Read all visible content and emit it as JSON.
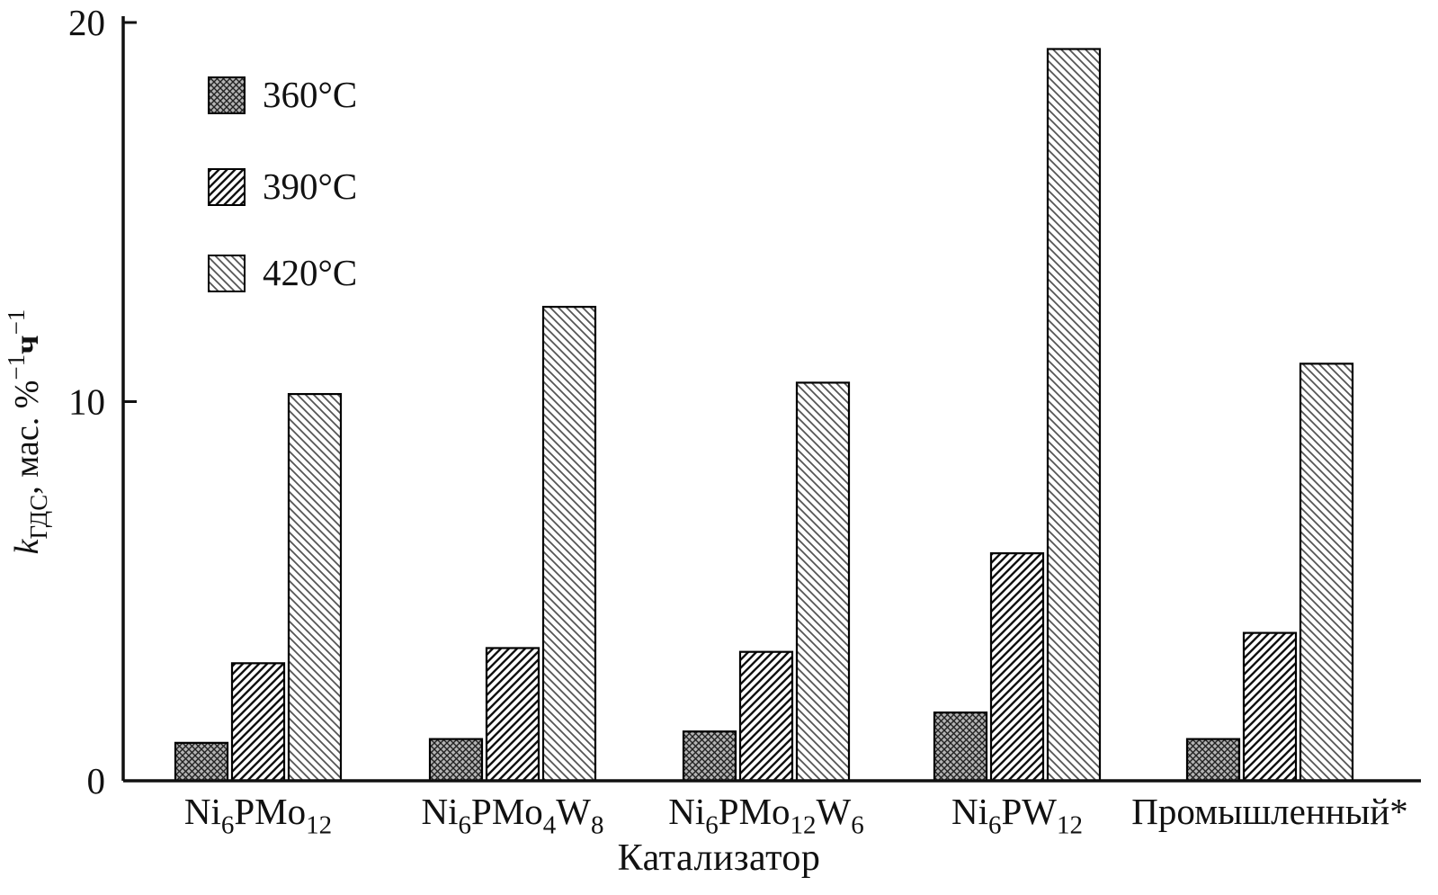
{
  "chart_data": {
    "type": "bar",
    "title": "",
    "xlabel": "Катализатор",
    "ylabel_parts": [
      {
        "t": "k",
        "italic": true
      },
      {
        "t": "ГДС",
        "sub": true
      },
      {
        "t": ", мас. %"
      },
      {
        "t": "−1",
        "sup": true
      },
      {
        "t": "ч",
        "bold": true
      },
      {
        "t": "−1",
        "sup": true
      }
    ],
    "ylim": [
      0,
      20
    ],
    "yticks": [
      0,
      10,
      20
    ],
    "grid": false,
    "legend_position": "top-left",
    "categories": [
      {
        "name": "Ni6PMo12",
        "parts": [
          {
            "t": "Ni"
          },
          {
            "t": "6",
            "sub": true
          },
          {
            "t": "PMo"
          },
          {
            "t": "12",
            "sub": true
          }
        ]
      },
      {
        "name": "Ni6PMo4W8",
        "parts": [
          {
            "t": "Ni"
          },
          {
            "t": "6",
            "sub": true
          },
          {
            "t": "PMo"
          },
          {
            "t": "4",
            "sub": true
          },
          {
            "t": "W"
          },
          {
            "t": "8",
            "sub": true
          }
        ]
      },
      {
        "name": "Ni6PMo12W6",
        "parts": [
          {
            "t": "Ni"
          },
          {
            "t": "6",
            "sub": true
          },
          {
            "t": "PMo"
          },
          {
            "t": "12",
            "sub": true
          },
          {
            "t": "W"
          },
          {
            "t": "6",
            "sub": true
          }
        ]
      },
      {
        "name": "Ni6PW12",
        "parts": [
          {
            "t": "Ni"
          },
          {
            "t": "6",
            "sub": true
          },
          {
            "t": "PW"
          },
          {
            "t": "12",
            "sub": true
          }
        ]
      },
      {
        "name": "Промышленный*",
        "parts": [
          {
            "t": "Промышленный*"
          }
        ]
      }
    ],
    "series": [
      {
        "name": "360°C",
        "pattern": "crosshatch",
        "values": [
          1.0,
          1.1,
          1.3,
          1.8,
          1.1
        ]
      },
      {
        "name": "390°C",
        "pattern": "diag-up",
        "values": [
          3.1,
          3.5,
          3.4,
          6.0,
          3.9
        ]
      },
      {
        "name": "420°C",
        "pattern": "diag-down",
        "values": [
          10.2,
          12.5,
          10.5,
          19.3,
          11.0
        ]
      }
    ],
    "colors": {
      "ink": "#111111",
      "bar_outline": "#000000",
      "crosshatch_bg": "#b3b3b3",
      "crosshatch_line": "#222222",
      "diag_up_line": "#111111",
      "diag_down_line": "#555555"
    }
  }
}
